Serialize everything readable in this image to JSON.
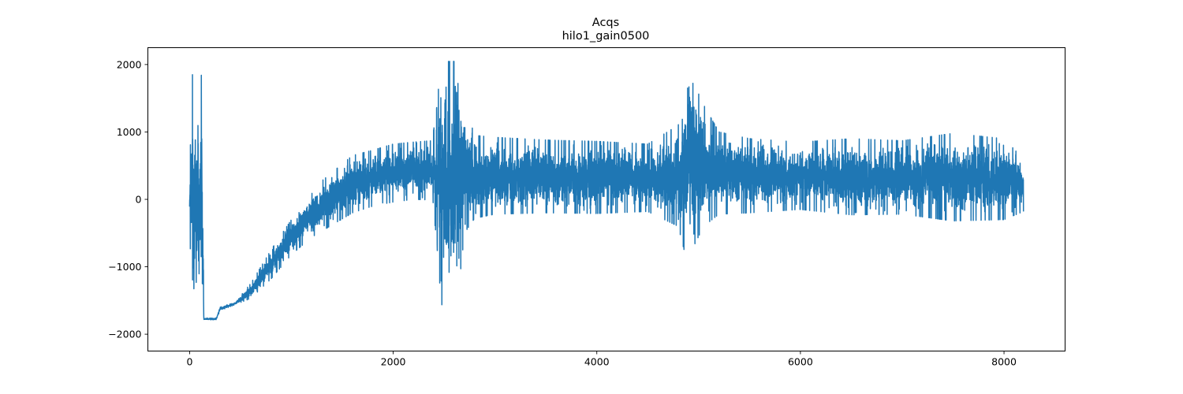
{
  "chart_data": {
    "type": "line",
    "title": "Acqs",
    "subtitle": "hilo1_gain0500",
    "xlabel": "",
    "ylabel": "",
    "xlim": [
      -410,
      8600
    ],
    "ylim": [
      -2250,
      2250
    ],
    "x_ticks": [
      0,
      2000,
      4000,
      6000,
      8000
    ],
    "x_tick_labels": [
      "0",
      "2000",
      "4000",
      "6000",
      "8000"
    ],
    "y_ticks": [
      -2000,
      -1000,
      0,
      1000,
      2000
    ],
    "y_tick_labels": [
      "−2000",
      "−1000",
      "0",
      "1000",
      "2000"
    ],
    "grid": false,
    "legend": "none",
    "series": [
      {
        "color": "#1f77b4",
        "n_points": 8192,
        "x_start": 0,
        "x_step": 1,
        "envelope": [
          {
            "x": 0,
            "min": -170,
            "max": 150
          },
          {
            "x": 20,
            "min": -1780,
            "max": 1800
          },
          {
            "x": 60,
            "min": -1780,
            "max": 2050
          },
          {
            "x": 90,
            "min": -2040,
            "max": 2050
          },
          {
            "x": 120,
            "min": -1780,
            "max": 1800
          },
          {
            "x": 140,
            "min": -1790,
            "max": -1760
          },
          {
            "x": 260,
            "min": -1790,
            "max": -1760
          },
          {
            "x": 300,
            "min": -1650,
            "max": -1600
          },
          {
            "x": 450,
            "min": -1560,
            "max": -1520
          },
          {
            "x": 600,
            "min": -1470,
            "max": -1250
          },
          {
            "x": 800,
            "min": -1180,
            "max": -750
          },
          {
            "x": 1000,
            "min": -820,
            "max": -300
          },
          {
            "x": 1200,
            "min": -560,
            "max": 150
          },
          {
            "x": 1400,
            "min": -380,
            "max": 400
          },
          {
            "x": 1600,
            "min": -200,
            "max": 650
          },
          {
            "x": 1800,
            "min": -100,
            "max": 730
          },
          {
            "x": 2000,
            "min": -40,
            "max": 820
          },
          {
            "x": 2200,
            "min": 0,
            "max": 850
          },
          {
            "x": 2380,
            "min": -10,
            "max": 870
          },
          {
            "x": 2420,
            "min": -500,
            "max": 1250
          },
          {
            "x": 2470,
            "min": -1500,
            "max": 2050
          },
          {
            "x": 2530,
            "min": -1970,
            "max": 2050
          },
          {
            "x": 2580,
            "min": -1580,
            "max": 2050
          },
          {
            "x": 2640,
            "min": -1380,
            "max": 2050
          },
          {
            "x": 2700,
            "min": -500,
            "max": 1420
          },
          {
            "x": 2800,
            "min": -280,
            "max": 950
          },
          {
            "x": 3000,
            "min": -220,
            "max": 920
          },
          {
            "x": 3500,
            "min": -200,
            "max": 880
          },
          {
            "x": 4000,
            "min": -210,
            "max": 860
          },
          {
            "x": 4500,
            "min": -180,
            "max": 820
          },
          {
            "x": 4800,
            "min": -400,
            "max": 1100
          },
          {
            "x": 4870,
            "min": -830,
            "max": 1620
          },
          {
            "x": 4950,
            "min": -700,
            "max": 1730
          },
          {
            "x": 5050,
            "min": -400,
            "max": 1400
          },
          {
            "x": 5200,
            "min": -220,
            "max": 1000
          },
          {
            "x": 5500,
            "min": -200,
            "max": 900
          },
          {
            "x": 6000,
            "min": -150,
            "max": 850
          },
          {
            "x": 6500,
            "min": -230,
            "max": 900
          },
          {
            "x": 7000,
            "min": -220,
            "max": 870
          },
          {
            "x": 7500,
            "min": -320,
            "max": 980
          },
          {
            "x": 8000,
            "min": -300,
            "max": 900
          },
          {
            "x": 8191,
            "min": -180,
            "max": 600
          }
        ]
      }
    ]
  }
}
